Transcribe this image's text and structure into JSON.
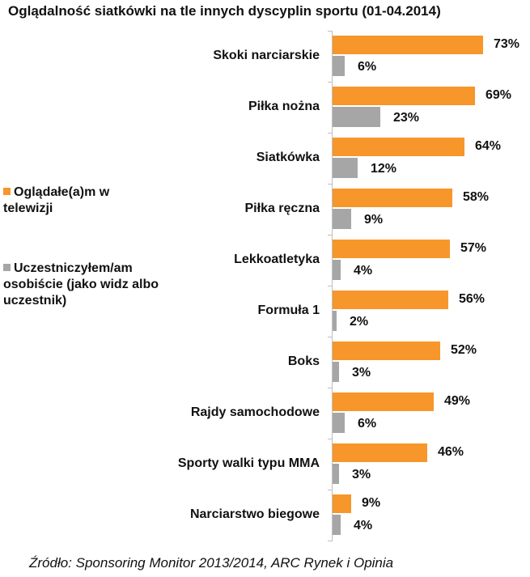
{
  "chart_data": {
    "type": "bar",
    "orientation": "horizontal",
    "title": "Oglądalność siatkówki na tle innych dyscyplin sportu (01-04.2014)",
    "categories": [
      "Skoki narciarskie",
      "Piłka nożna",
      "Siatkówka",
      "Piłka ręczna",
      "Lekkoatletyka",
      "Formuła 1",
      "Boks",
      "Rajdy samochodowe",
      "Sporty walki typu MMA",
      "Narciarstwo biegowe"
    ],
    "series": [
      {
        "name": "Oglądałe(a)m w telewizji",
        "color": "#F7962A",
        "values": [
          73,
          69,
          64,
          58,
          57,
          56,
          52,
          49,
          46,
          9
        ]
      },
      {
        "name": "Uczestniczyłem/am osobiście (jako widz albo uczestnik)",
        "color": "#A6A6A6",
        "values": [
          6,
          23,
          12,
          9,
          4,
          2,
          3,
          6,
          3,
          4
        ]
      }
    ],
    "value_labels": {
      "tv": [
        "73%",
        "69%",
        "64%",
        "58%",
        "57%",
        "56%",
        "52%",
        "49%",
        "46%",
        "9%"
      ],
      "live": [
        "6%",
        "23%",
        "12%",
        "9%",
        "4%",
        "2%",
        "3%",
        "6%",
        "3%",
        "4%"
      ]
    },
    "xlabel": "",
    "ylabel": "",
    "xlim": [
      0,
      80
    ],
    "grid": false,
    "legend_position": "left",
    "source": "Źródło: Sponsoring Monitor 2013/2014, ARC Rynek i Opinia"
  },
  "legend": [
    {
      "label": "Oglądałe(a)m w telewizji",
      "color": "#F7962A"
    },
    {
      "label": "Uczestniczyłem/am osobiście (jako widz albo uczestnik)",
      "color": "#A6A6A6"
    }
  ]
}
